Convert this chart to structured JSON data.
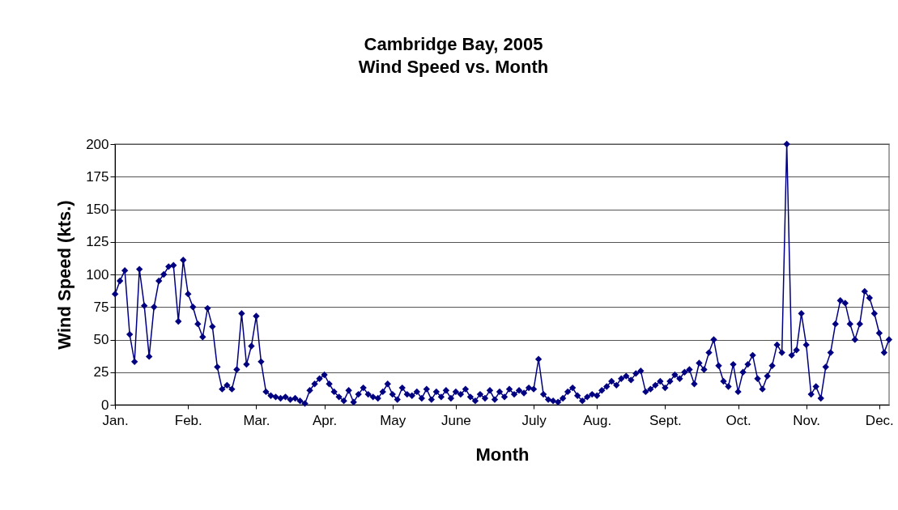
{
  "chart_data": {
    "type": "line",
    "title": "Cambridge Bay, 2005",
    "subtitle": "Wind Speed vs. Month",
    "xlabel": "Month",
    "ylabel": "Wind Speed (kts.)",
    "categories": [
      "Jan.",
      null,
      null,
      null,
      null,
      null,
      null,
      null,
      null,
      null,
      null,
      null,
      null,
      null,
      null,
      "Feb.",
      null,
      null,
      null,
      null,
      null,
      null,
      null,
      null,
      null,
      null,
      null,
      null,
      null,
      "Mar.",
      null,
      null,
      null,
      null,
      null,
      null,
      null,
      null,
      null,
      null,
      null,
      null,
      null,
      "Apr.",
      null,
      null,
      null,
      null,
      null,
      null,
      null,
      null,
      null,
      null,
      null,
      null,
      null,
      "May",
      null,
      null,
      null,
      null,
      null,
      null,
      null,
      null,
      null,
      null,
      null,
      null,
      "June",
      null,
      null,
      null,
      null,
      null,
      null,
      null,
      null,
      null,
      null,
      null,
      null,
      null,
      null,
      null,
      "July",
      null,
      null,
      null,
      null,
      null,
      null,
      null,
      null,
      null,
      null,
      null,
      null,
      "Aug.",
      null,
      null,
      null,
      null,
      null,
      null,
      null,
      null,
      null,
      null,
      null,
      null,
      null,
      "Sept.",
      null,
      null,
      null,
      null,
      null,
      null,
      null,
      null,
      null,
      null,
      null,
      null,
      null,
      null,
      "Oct.",
      null,
      null,
      null,
      null,
      null,
      null,
      null,
      null,
      null,
      null,
      null,
      null,
      null,
      "Nov.",
      null,
      null,
      null,
      null,
      null,
      null,
      null,
      null,
      null,
      null,
      null,
      null,
      null,
      null,
      "Dec.",
      null,
      null
    ],
    "series": [
      {
        "color": "#000080",
        "values": [
          85,
          95,
          103,
          54,
          33,
          104,
          76,
          37,
          75,
          95,
          100,
          106,
          107,
          64,
          111,
          85,
          75,
          62,
          52,
          74,
          60,
          29,
          12,
          15,
          12,
          27,
          70,
          31,
          45,
          68,
          33,
          10,
          7,
          6,
          5,
          6,
          4,
          5,
          3,
          1,
          11,
          16,
          20,
          23,
          16,
          10,
          6,
          3,
          11,
          2,
          8,
          13,
          8,
          6,
          5,
          10,
          16,
          8,
          4,
          13,
          8,
          7,
          10,
          5,
          12,
          4,
          10,
          6,
          11,
          5,
          10,
          8,
          12,
          6,
          3,
          8,
          5,
          11,
          4,
          10,
          6,
          12,
          8,
          11,
          9,
          13,
          12,
          35,
          8,
          4,
          3,
          2,
          5,
          10,
          13,
          7,
          3,
          6,
          8,
          7,
          11,
          14,
          18,
          15,
          20,
          22,
          19,
          24,
          26,
          10,
          12,
          15,
          18,
          13,
          18,
          23,
          20,
          25,
          27,
          16,
          32,
          27,
          40,
          50,
          30,
          18,
          14,
          31,
          10,
          25,
          31,
          38,
          20,
          12,
          22,
          30,
          46,
          40,
          200,
          38,
          42,
          70,
          46,
          8,
          14,
          5,
          29,
          40,
          62,
          80,
          78,
          62,
          50,
          62,
          87,
          82,
          70,
          55,
          40,
          50
        ]
      }
    ],
    "ylim": [
      0,
      200
    ],
    "yticks": [
      0,
      25,
      50,
      75,
      100,
      125,
      150,
      175,
      200
    ],
    "grid": "y",
    "marker": "diamond",
    "line_style": "solid"
  }
}
